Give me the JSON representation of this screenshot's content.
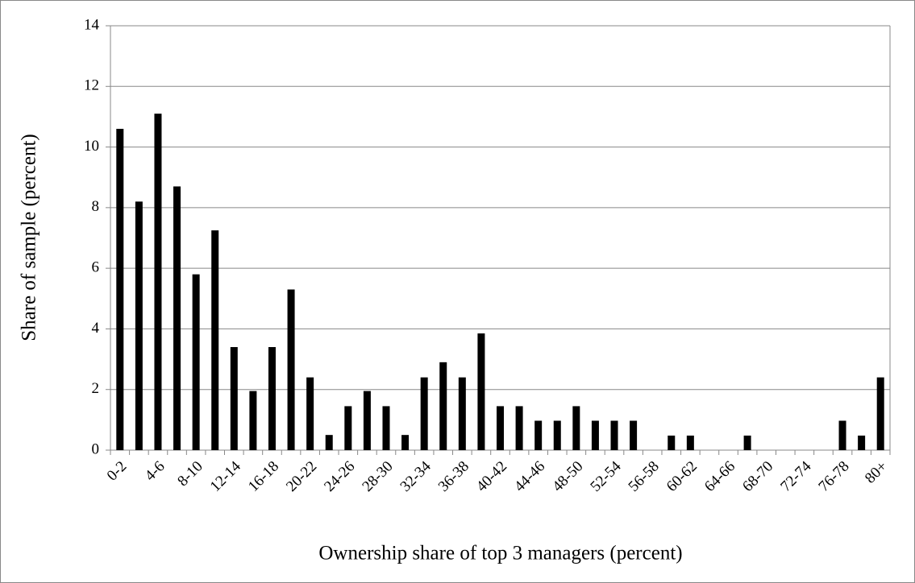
{
  "chart_data": {
    "type": "bar",
    "x_label": "Ownership share of top 3 managers (percent)",
    "y_label": "Share of sample (percent)",
    "categories": [
      "0-2",
      null,
      "4-6",
      null,
      "8-10",
      null,
      "12-14",
      null,
      "16-18",
      null,
      "20-22",
      null,
      "24-26",
      null,
      "28-30",
      null,
      "32-34",
      null,
      "36-38",
      null,
      "40-42",
      null,
      "44-46",
      null,
      "48-50",
      null,
      "52-54",
      null,
      "56-58",
      null,
      "60-62",
      null,
      "64-66",
      null,
      "68-70",
      null,
      "72-74",
      null,
      "76-78",
      null,
      "80+"
    ],
    "values": [
      10.6,
      8.2,
      11.1,
      8.7,
      5.8,
      7.25,
      3.4,
      1.95,
      3.4,
      5.3,
      2.4,
      0.5,
      1.45,
      1.95,
      1.45,
      0.5,
      2.4,
      2.9,
      2.4,
      3.85,
      1.45,
      1.45,
      0.97,
      0.97,
      1.45,
      0.97,
      0.97,
      0.97,
      0,
      0.48,
      0.48,
      0,
      0,
      0.48,
      0,
      0,
      0,
      0,
      0.97,
      0.48,
      2.4
    ],
    "color": "#000000",
    "ylim": [
      0,
      14
    ],
    "yticks": [
      0,
      2,
      4,
      6,
      8,
      10,
      12,
      14
    ],
    "grid": true
  }
}
